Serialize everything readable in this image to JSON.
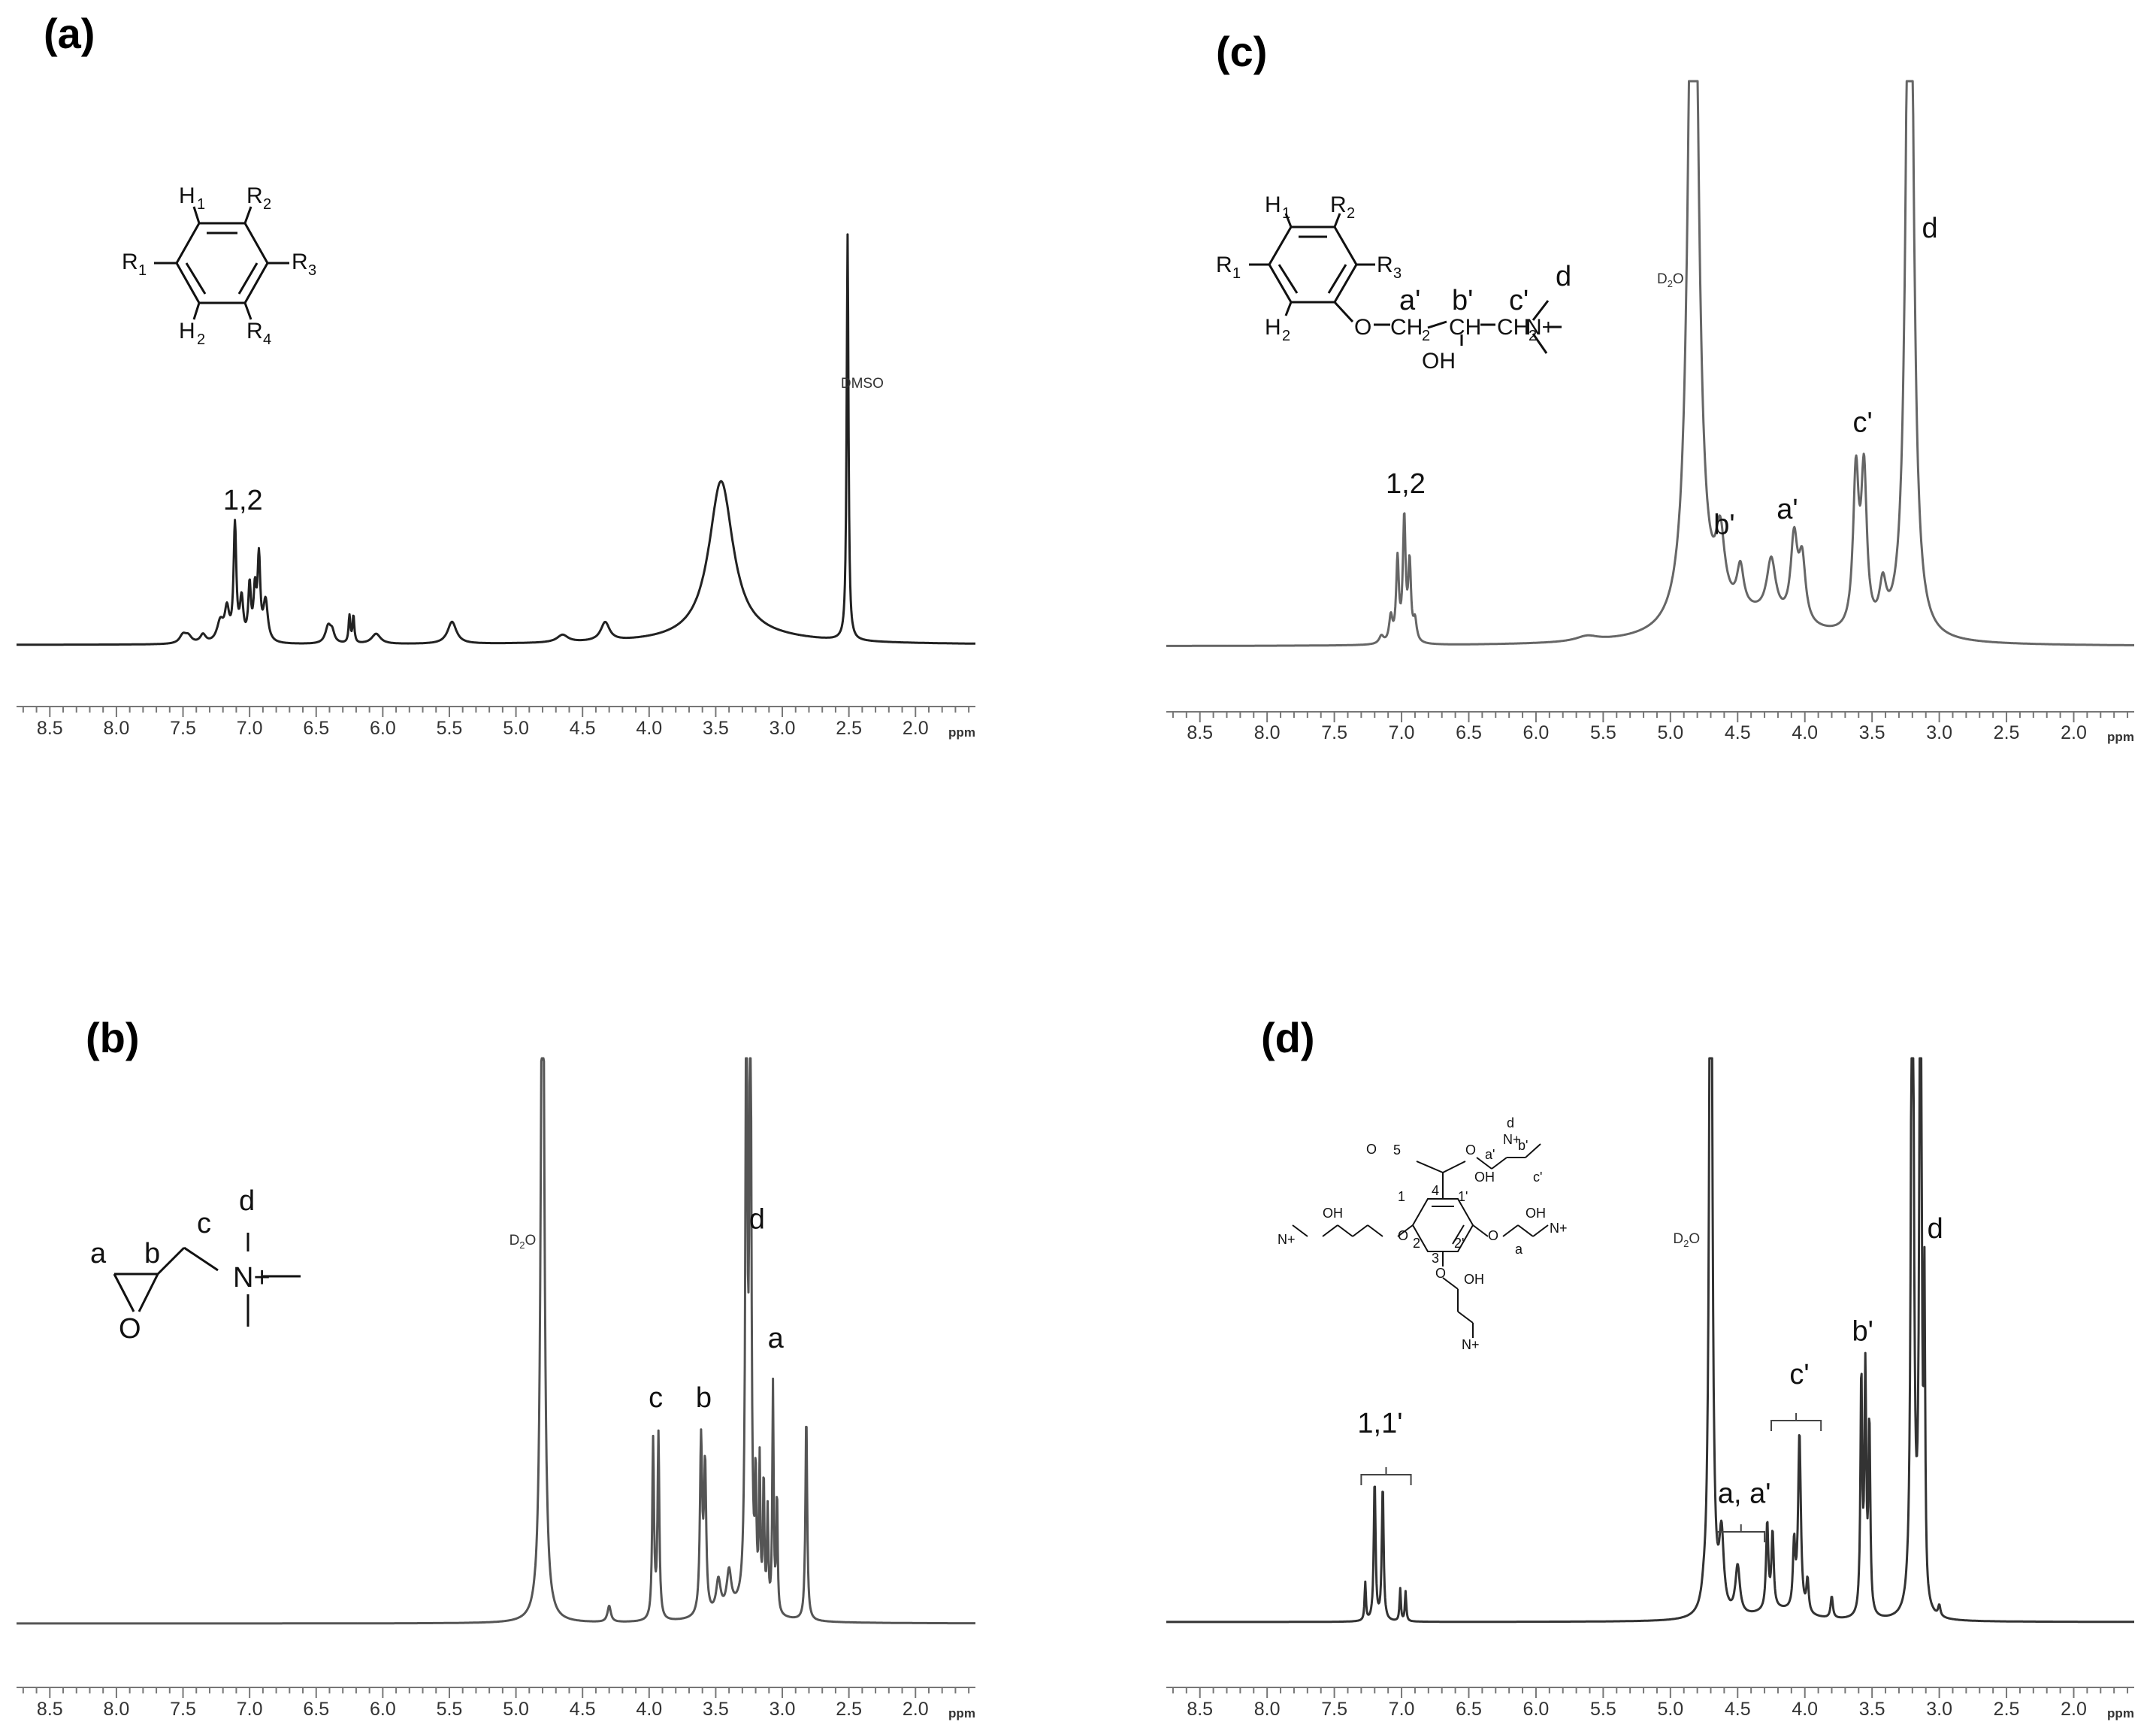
{
  "chart_data": [
    {
      "type": "line",
      "panel": "(a)",
      "xlim": [
        8.75,
        1.55
      ],
      "x_ticks": [
        "8.5",
        "8.0",
        "7.5",
        "7.0",
        "6.5",
        "6.0",
        "5.5",
        "5.0",
        "4.5",
        "4.0",
        "3.5",
        "3.0",
        "2.5",
        "2.0"
      ],
      "x_unit": "ppm",
      "peaks": [
        {
          "x": 7.5,
          "h": 0.025,
          "w": 0.03
        },
        {
          "x": 7.46,
          "h": 0.02,
          "w": 0.03
        },
        {
          "x": 7.35,
          "h": 0.025,
          "w": 0.025
        },
        {
          "x": 7.22,
          "h": 0.06,
          "w": 0.03
        },
        {
          "x": 7.17,
          "h": 0.09,
          "w": 0.02
        },
        {
          "x": 7.11,
          "h": 0.34,
          "w": 0.012
        },
        {
          "x": 7.06,
          "h": 0.12,
          "w": 0.015
        },
        {
          "x": 7.0,
          "h": 0.16,
          "w": 0.012
        },
        {
          "x": 6.96,
          "h": 0.14,
          "w": 0.012
        },
        {
          "x": 6.93,
          "h": 0.24,
          "w": 0.012
        },
        {
          "x": 6.88,
          "h": 0.12,
          "w": 0.02
        },
        {
          "x": 6.41,
          "h": 0.05,
          "w": 0.025
        },
        {
          "x": 6.38,
          "h": 0.03,
          "w": 0.02
        },
        {
          "x": 6.25,
          "h": 0.08,
          "w": 0.008
        },
        {
          "x": 6.22,
          "h": 0.08,
          "w": 0.008
        },
        {
          "x": 6.05,
          "h": 0.03,
          "w": 0.04
        },
        {
          "x": 5.48,
          "h": 0.065,
          "w": 0.04
        },
        {
          "x": 4.65,
          "h": 0.022,
          "w": 0.05
        },
        {
          "x": 4.33,
          "h": 0.055,
          "w": 0.04
        },
        {
          "x": 3.46,
          "h": 0.465,
          "w": 0.11
        },
        {
          "x": 2.51,
          "h": 1.2,
          "w": 0.008
        }
      ],
      "broad_hump": {
        "x": 3.3,
        "h": 0.02,
        "w": 0.6
      },
      "labels": [
        {
          "text": "1,2",
          "x": 7.05,
          "h": 0.4
        },
        {
          "text": "DMSO",
          "x": 2.4,
          "h": 0.76
        }
      ],
      "structure": {
        "H1": "H",
        "R2": "R",
        "R1": "R",
        "R3": "R",
        "H2": "H",
        "R4": "R"
      }
    },
    {
      "type": "line",
      "panel": "(b)",
      "xlim": [
        8.75,
        1.55
      ],
      "x_ticks": [
        "8.5",
        "8.0",
        "7.5",
        "7.0",
        "6.5",
        "6.0",
        "5.5",
        "5.0",
        "4.5",
        "4.0",
        "3.5",
        "3.0",
        "2.5",
        "2.0"
      ],
      "x_unit": "ppm",
      "peaks": [
        {
          "x": 4.8,
          "h": 1.5,
          "w": 0.015
        },
        {
          "x": 4.3,
          "h": 0.03,
          "w": 0.015
        },
        {
          "x": 3.97,
          "h": 0.33,
          "w": 0.008
        },
        {
          "x": 3.93,
          "h": 0.34,
          "w": 0.008
        },
        {
          "x": 3.61,
          "h": 0.32,
          "w": 0.01
        },
        {
          "x": 3.58,
          "h": 0.27,
          "w": 0.01
        },
        {
          "x": 3.48,
          "h": 0.06,
          "w": 0.02
        },
        {
          "x": 3.4,
          "h": 0.07,
          "w": 0.02
        },
        {
          "x": 3.27,
          "h": 1.3,
          "w": 0.008
        },
        {
          "x": 3.24,
          "h": 1.3,
          "w": 0.008
        },
        {
          "x": 3.2,
          "h": 0.22,
          "w": 0.006
        },
        {
          "x": 3.17,
          "h": 0.26,
          "w": 0.006
        },
        {
          "x": 3.14,
          "h": 0.24,
          "w": 0.006
        },
        {
          "x": 3.11,
          "h": 0.18,
          "w": 0.006
        },
        {
          "x": 3.07,
          "h": 0.42,
          "w": 0.006
        },
        {
          "x": 3.04,
          "h": 0.22,
          "w": 0.006
        },
        {
          "x": 2.82,
          "h": 0.38,
          "w": 0.008
        }
      ],
      "broad_hump": {
        "x": 3.3,
        "h": 0.025,
        "w": 0.2
      },
      "labels": [
        {
          "text": "D2O",
          "x": 4.95,
          "h": 0.7
        },
        {
          "text": "c",
          "x": 3.95,
          "h": 0.4
        },
        {
          "text": "b",
          "x": 3.59,
          "h": 0.4
        },
        {
          "text": "d",
          "x": 3.19,
          "h": 0.73
        },
        {
          "text": "a",
          "x": 3.05,
          "h": 0.51
        }
      ],
      "structure": {
        "a": "a",
        "b": "b",
        "c": "c",
        "d": "d",
        "O": "O",
        "N": "N+"
      }
    },
    {
      "type": "line",
      "panel": "(c)",
      "xlim": [
        8.75,
        1.55
      ],
      "x_ticks": [
        "8.5",
        "8.0",
        "7.5",
        "7.0",
        "6.5",
        "6.0",
        "5.5",
        "5.0",
        "4.5",
        "4.0",
        "3.5",
        "3.0",
        "2.5",
        "2.0"
      ],
      "x_unit": "ppm",
      "peaks": [
        {
          "x": 7.15,
          "h": 0.015,
          "w": 0.02
        },
        {
          "x": 7.08,
          "h": 0.05,
          "w": 0.015
        },
        {
          "x": 7.03,
          "h": 0.16,
          "w": 0.012
        },
        {
          "x": 6.98,
          "h": 0.24,
          "w": 0.012
        },
        {
          "x": 6.94,
          "h": 0.15,
          "w": 0.012
        },
        {
          "x": 6.9,
          "h": 0.04,
          "w": 0.015
        },
        {
          "x": 5.62,
          "h": 0.01,
          "w": 0.1
        },
        {
          "x": 4.83,
          "h": 1.8,
          "w": 0.04
        },
        {
          "x": 4.63,
          "h": 0.14,
          "w": 0.04
        },
        {
          "x": 4.48,
          "h": 0.08,
          "w": 0.03
        },
        {
          "x": 4.25,
          "h": 0.11,
          "w": 0.04
        },
        {
          "x": 4.08,
          "h": 0.16,
          "w": 0.03
        },
        {
          "x": 4.02,
          "h": 0.12,
          "w": 0.03
        },
        {
          "x": 3.62,
          "h": 0.3,
          "w": 0.025
        },
        {
          "x": 3.56,
          "h": 0.3,
          "w": 0.025
        },
        {
          "x": 3.42,
          "h": 0.08,
          "w": 0.03
        },
        {
          "x": 3.22,
          "h": 1.8,
          "w": 0.03
        }
      ],
      "broad_hump": {
        "x": 4.4,
        "h": 0.05,
        "w": 0.45
      },
      "labels": [
        {
          "text": "1,2",
          "x": 6.97,
          "h": 0.3
        },
        {
          "text": "D2O",
          "x": 5.0,
          "h": 0.71
        },
        {
          "text": "b'",
          "x": 4.6,
          "h": 0.22
        },
        {
          "text": "a'",
          "x": 4.13,
          "h": 0.25
        },
        {
          "text": "c'",
          "x": 3.57,
          "h": 0.42
        },
        {
          "text": "d",
          "x": 3.07,
          "h": 0.8
        }
      ],
      "structure": {
        "H1": "H",
        "R2": "R",
        "R1": "R",
        "R3": "R",
        "H2": "H",
        "O": "O",
        "a": "a'",
        "b": "b'",
        "c": "c'",
        "d": "d",
        "OH": "OH",
        "N": "N+"
      }
    },
    {
      "type": "line",
      "panel": "(d)",
      "xlim": [
        8.75,
        1.55
      ],
      "x_ticks": [
        "8.5",
        "8.0",
        "7.5",
        "7.0",
        "6.5",
        "6.0",
        "5.5",
        "5.0",
        "4.5",
        "4.0",
        "3.5",
        "3.0",
        "2.5",
        "2.0"
      ],
      "x_unit": "ppm",
      "peaks": [
        {
          "x": 7.27,
          "h": 0.07,
          "w": 0.006
        },
        {
          "x": 7.2,
          "h": 0.26,
          "w": 0.008
        },
        {
          "x": 7.14,
          "h": 0.25,
          "w": 0.008
        },
        {
          "x": 7.01,
          "h": 0.06,
          "w": 0.006
        },
        {
          "x": 6.97,
          "h": 0.055,
          "w": 0.006
        },
        {
          "x": 4.75,
          "h": 0.02,
          "w": 0.02
        },
        {
          "x": 4.7,
          "h": 1.8,
          "w": 0.012
        },
        {
          "x": 4.62,
          "h": 0.14,
          "w": 0.02
        },
        {
          "x": 4.5,
          "h": 0.09,
          "w": 0.02
        },
        {
          "x": 4.28,
          "h": 0.16,
          "w": 0.01
        },
        {
          "x": 4.24,
          "h": 0.14,
          "w": 0.01
        },
        {
          "x": 4.08,
          "h": 0.12,
          "w": 0.01
        },
        {
          "x": 4.04,
          "h": 0.33,
          "w": 0.012
        },
        {
          "x": 3.98,
          "h": 0.06,
          "w": 0.01
        },
        {
          "x": 3.8,
          "h": 0.04,
          "w": 0.01
        },
        {
          "x": 3.58,
          "h": 0.44,
          "w": 0.008
        },
        {
          "x": 3.55,
          "h": 0.44,
          "w": 0.008
        },
        {
          "x": 3.52,
          "h": 0.35,
          "w": 0.008
        },
        {
          "x": 3.2,
          "h": 1.8,
          "w": 0.01
        },
        {
          "x": 3.14,
          "h": 1.8,
          "w": 0.008
        },
        {
          "x": 3.11,
          "h": 0.55,
          "w": 0.006
        },
        {
          "x": 3.0,
          "h": 0.02,
          "w": 0.01
        }
      ],
      "broad_hump": {
        "x": 4.2,
        "h": 0.02,
        "w": 0.2
      },
      "labels": [
        {
          "text": "1,1'",
          "x": 7.16,
          "h": 0.35
        },
        {
          "text": "D2O",
          "x": 4.88,
          "h": 0.7
        },
        {
          "text": "a, a'",
          "x": 4.45,
          "h": 0.22
        },
        {
          "text": "c'",
          "x": 4.04,
          "h": 0.44
        },
        {
          "text": "b'",
          "x": 3.57,
          "h": 0.52
        },
        {
          "text": "d",
          "x": 3.03,
          "h": 0.71
        }
      ],
      "structure": {
        "O5": "O",
        "n5": "5",
        "a": "a'",
        "b": "b'",
        "c": "c'",
        "d": "d",
        "n4": "4",
        "n1": "1",
        "n1p": "1'",
        "n2": "2",
        "n2p": "2'",
        "n3": "3",
        "OH": "OH",
        "O": "O",
        "N": "N+",
        "ap": "a"
      }
    }
  ]
}
